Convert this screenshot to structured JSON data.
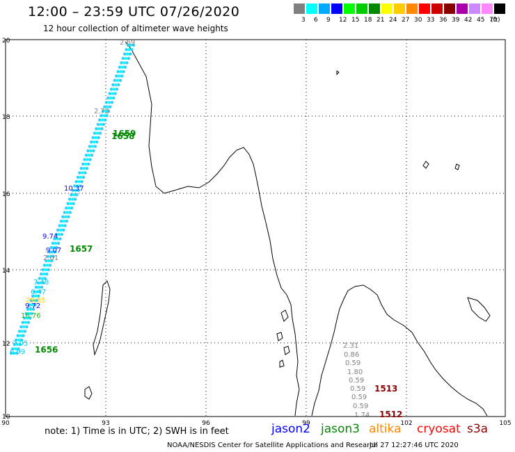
{
  "header": {
    "title": "12:00 – 23:59 UTC 07/26/2020",
    "subtitle": "12 hour collection of altimeter wave heights"
  },
  "legend": {
    "unit": "(ft)",
    "bins": [
      {
        "label": "3",
        "color": "#808080"
      },
      {
        "label": "6",
        "color": "#00ffff"
      },
      {
        "label": "9",
        "color": "#00aaff"
      },
      {
        "label": "12",
        "color": "#0000ff"
      },
      {
        "label": "15",
        "color": "#00ff00"
      },
      {
        "label": "18",
        "color": "#00cc00"
      },
      {
        "label": "21",
        "color": "#008800"
      },
      {
        "label": "24",
        "color": "#ffff00"
      },
      {
        "label": "27",
        "color": "#ffcc00"
      },
      {
        "label": "30",
        "color": "#ff8800"
      },
      {
        "label": "33",
        "color": "#ff0000"
      },
      {
        "label": "36",
        "color": "#cc0000"
      },
      {
        "label": "39",
        "color": "#880000"
      },
      {
        "label": "42",
        "color": "#aa00aa"
      },
      {
        "label": "45",
        "color": "#cc88ff"
      },
      {
        "label": "70",
        "color": "#ff88ff"
      },
      {
        "label": "",
        "color": "#000000"
      }
    ]
  },
  "axes": {
    "x_ticks": [
      "90",
      "93",
      "96",
      "99",
      "102",
      "105"
    ],
    "y_ticks": [
      "20",
      "18",
      "16",
      "14",
      "12",
      "10"
    ]
  },
  "track_labels": [
    {
      "value": "10.37",
      "color": "#0000ff"
    },
    {
      "value": "9.74",
      "color": "#0000ff"
    },
    {
      "value": "9.07",
      "color": "#0000ff"
    },
    {
      "value": "2.01",
      "color": "#808080"
    },
    {
      "value": "2.73",
      "color": "#808080"
    },
    {
      "value": "2.69",
      "color": "#808080"
    },
    {
      "value": "6.47",
      "color": "#00ccff"
    },
    {
      "value": "7.48",
      "color": "#00ccff"
    },
    {
      "value": "29.85",
      "color": "#ffcc00"
    },
    {
      "value": "9.72",
      "color": "#0000ff"
    },
    {
      "value": "16.76",
      "color": "#00cc00"
    },
    {
      "value": "7.05",
      "color": "#00ccff"
    },
    {
      "value": "6.99",
      "color": "#00ccff"
    },
    {
      "value": "1659",
      "color": "#008800"
    },
    {
      "value": "1658",
      "color": "#008800"
    },
    {
      "value": "1657",
      "color": "#008800"
    },
    {
      "value": "1656",
      "color": "#008800"
    }
  ],
  "track_values_east": [
    "2.31",
    "0.86",
    "0.59",
    "1.80",
    "0.59",
    "0.59",
    "0.59",
    "0.59",
    "1.74"
  ],
  "pass_numbers_east": [
    {
      "value": "1513",
      "color": "#880000"
    },
    {
      "value": "1512",
      "color": "#880000"
    }
  ],
  "footer": {
    "note": "note: 1) Time is in UTC; 2) SWH is in feet",
    "satellites": [
      {
        "name": "jason2",
        "color": "#0000ff"
      },
      {
        "name": "jason3",
        "color": "#008800"
      },
      {
        "name": "altika",
        "color": "#ff8800"
      },
      {
        "name": "cryosat",
        "color": "#ff0000"
      },
      {
        "name": "s3a",
        "color": "#880000"
      }
    ],
    "credit": "NOAA/NESDIS Center for Satellite Applications and Research",
    "timestamp": "Jul 27 12:27:46 UTC 2020"
  }
}
